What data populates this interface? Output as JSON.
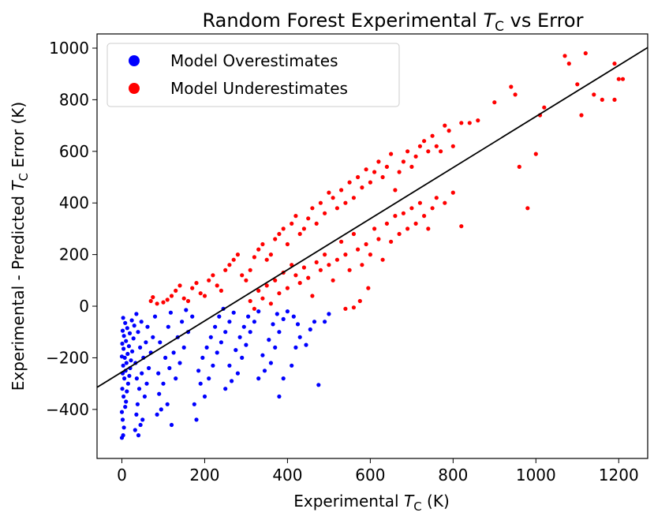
{
  "chart_data": {
    "type": "scatter",
    "title": {
      "prefix": "Random Forest Experimental ",
      "var": "T",
      "sub": "C",
      "suffix": " vs Error"
    },
    "xlabel": {
      "prefix": "Experimental ",
      "var": "T",
      "sub": "C",
      "suffix": " (K)"
    },
    "ylabel": {
      "prefix": "Experimental - Predicted ",
      "var": "T",
      "sub": "C",
      "suffix": " Error (K)"
    },
    "xlim": [
      -60,
      1270
    ],
    "ylim": [
      -590,
      1055
    ],
    "xticks": [
      0,
      200,
      400,
      600,
      800,
      1000,
      1200
    ],
    "yticks": [
      -400,
      -200,
      0,
      200,
      400,
      600,
      800,
      1000
    ],
    "xtick_labels": [
      "0",
      "200",
      "400",
      "600",
      "800",
      "1000",
      "1200"
    ],
    "ytick_labels": [
      "−400",
      "−200",
      "0",
      "200",
      "400",
      "600",
      "800",
      "1000"
    ],
    "legend_position": "upper-left",
    "trend_line": {
      "slope": 0.99,
      "intercept": -255,
      "color": "#000000"
    },
    "series": [
      {
        "name": "Model Overestimates",
        "color": "#0000ff",
        "points": [
          [
            0,
            -510
          ],
          [
            3,
            -500
          ],
          [
            5,
            -470
          ],
          [
            2,
            -440
          ],
          [
            0,
            -410
          ],
          [
            8,
            -390
          ],
          [
            10,
            -370
          ],
          [
            4,
            -350
          ],
          [
            12,
            -330
          ],
          [
            1,
            -320
          ],
          [
            15,
            -300
          ],
          [
            6,
            -280
          ],
          [
            18,
            -270
          ],
          [
            2,
            -260
          ],
          [
            9,
            -250
          ],
          [
            20,
            -240
          ],
          [
            3,
            -230
          ],
          [
            11,
            -220
          ],
          [
            22,
            -210
          ],
          [
            7,
            -200
          ],
          [
            0,
            -195
          ],
          [
            14,
            -185
          ],
          [
            25,
            -175
          ],
          [
            4,
            -165
          ],
          [
            17,
            -155
          ],
          [
            1,
            -145
          ],
          [
            10,
            -135
          ],
          [
            28,
            -125
          ],
          [
            5,
            -115
          ],
          [
            19,
            -105
          ],
          [
            2,
            -95
          ],
          [
            13,
            -85
          ],
          [
            30,
            -75
          ],
          [
            8,
            -65
          ],
          [
            24,
            -55
          ],
          [
            3,
            -45
          ],
          [
            32,
            -480
          ],
          [
            40,
            -500
          ],
          [
            45,
            -460
          ],
          [
            35,
            -420
          ],
          [
            50,
            -440
          ],
          [
            38,
            -380
          ],
          [
            55,
            -350
          ],
          [
            42,
            -320
          ],
          [
            60,
            -300
          ],
          [
            36,
            -280
          ],
          [
            48,
            -260
          ],
          [
            65,
            -240
          ],
          [
            33,
            -220
          ],
          [
            52,
            -200
          ],
          [
            70,
            -180
          ],
          [
            44,
            -160
          ],
          [
            58,
            -140
          ],
          [
            75,
            -120
          ],
          [
            39,
            -100
          ],
          [
            62,
            -80
          ],
          [
            47,
            -60
          ],
          [
            80,
            -40
          ],
          [
            35,
            -30
          ],
          [
            85,
            -420
          ],
          [
            95,
            -400
          ],
          [
            110,
            -380
          ],
          [
            90,
            -340
          ],
          [
            120,
            -460
          ],
          [
            100,
            -300
          ],
          [
            130,
            -280
          ],
          [
            88,
            -260
          ],
          [
            115,
            -240
          ],
          [
            140,
            -220
          ],
          [
            105,
            -200
          ],
          [
            125,
            -180
          ],
          [
            150,
            -160
          ],
          [
            92,
            -140
          ],
          [
            135,
            -120
          ],
          [
            160,
            -100
          ],
          [
            112,
            -80
          ],
          [
            145,
            -60
          ],
          [
            170,
            -40
          ],
          [
            118,
            -25
          ],
          [
            155,
            -15
          ],
          [
            180,
            -440
          ],
          [
            175,
            -380
          ],
          [
            200,
            -350
          ],
          [
            190,
            -300
          ],
          [
            210,
            -280
          ],
          [
            185,
            -250
          ],
          [
            220,
            -230
          ],
          [
            195,
            -200
          ],
          [
            230,
            -180
          ],
          [
            205,
            -160
          ],
          [
            240,
            -140
          ],
          [
            215,
            -120
          ],
          [
            250,
            -100
          ],
          [
            225,
            -80
          ],
          [
            260,
            -60
          ],
          [
            235,
            -40
          ],
          [
            270,
            -25
          ],
          [
            245,
            -10
          ],
          [
            250,
            -320
          ],
          [
            265,
            -290
          ],
          [
            280,
            -260
          ],
          [
            260,
            -230
          ],
          [
            290,
            -200
          ],
          [
            275,
            -170
          ],
          [
            300,
            -150
          ],
          [
            285,
            -120
          ],
          [
            310,
            -100
          ],
          [
            295,
            -80
          ],
          [
            320,
            -60
          ],
          [
            305,
            -40
          ],
          [
            330,
            -20
          ],
          [
            330,
            -280
          ],
          [
            345,
            -250
          ],
          [
            360,
            -220
          ],
          [
            340,
            -190
          ],
          [
            370,
            -160
          ],
          [
            355,
            -130
          ],
          [
            380,
            -100
          ],
          [
            365,
            -70
          ],
          [
            390,
            -50
          ],
          [
            375,
            -30
          ],
          [
            400,
            -20
          ],
          [
            380,
            -350
          ],
          [
            390,
            -280
          ],
          [
            410,
            -230
          ],
          [
            420,
            -160
          ],
          [
            430,
            -120
          ],
          [
            445,
            -150
          ],
          [
            455,
            -90
          ],
          [
            465,
            -60
          ],
          [
            475,
            -305
          ],
          [
            490,
            -60
          ],
          [
            500,
            -30
          ],
          [
            415,
            -40
          ],
          [
            425,
            -70
          ]
        ]
      },
      {
        "name": "Model Underestimates",
        "color": "#ff0000",
        "points": [
          [
            70,
            20
          ],
          [
            75,
            35
          ],
          [
            85,
            10
          ],
          [
            100,
            15
          ],
          [
            110,
            25
          ],
          [
            120,
            40
          ],
          [
            130,
            60
          ],
          [
            140,
            80
          ],
          [
            150,
            30
          ],
          [
            160,
            20
          ],
          [
            170,
            70
          ],
          [
            180,
            90
          ],
          [
            190,
            50
          ],
          [
            200,
            40
          ],
          [
            210,
            100
          ],
          [
            220,
            120
          ],
          [
            230,
            80
          ],
          [
            240,
            60
          ],
          [
            250,
            140
          ],
          [
            260,
            160
          ],
          [
            270,
            180
          ],
          [
            280,
            200
          ],
          [
            290,
            120
          ],
          [
            300,
            100
          ],
          [
            310,
            140
          ],
          [
            320,
            190
          ],
          [
            330,
            220
          ],
          [
            340,
            240
          ],
          [
            350,
            180
          ],
          [
            360,
            200
          ],
          [
            370,
            260
          ],
          [
            380,
            280
          ],
          [
            390,
            300
          ],
          [
            400,
            240
          ],
          [
            410,
            320
          ],
          [
            420,
            350
          ],
          [
            430,
            280
          ],
          [
            440,
            300
          ],
          [
            450,
            340
          ],
          [
            460,
            380
          ],
          [
            470,
            320
          ],
          [
            480,
            400
          ],
          [
            490,
            360
          ],
          [
            500,
            440
          ],
          [
            510,
            420
          ],
          [
            520,
            380
          ],
          [
            530,
            450
          ],
          [
            540,
            400
          ],
          [
            550,
            480
          ],
          [
            560,
            420
          ],
          [
            570,
            500
          ],
          [
            580,
            460
          ],
          [
            590,
            530
          ],
          [
            600,
            480
          ],
          [
            610,
            520
          ],
          [
            620,
            560
          ],
          [
            630,
            500
          ],
          [
            640,
            540
          ],
          [
            650,
            590
          ],
          [
            660,
            450
          ],
          [
            670,
            520
          ],
          [
            680,
            560
          ],
          [
            690,
            600
          ],
          [
            700,
            540
          ],
          [
            710,
            580
          ],
          [
            720,
            620
          ],
          [
            730,
            640
          ],
          [
            740,
            600
          ],
          [
            750,
            660
          ],
          [
            760,
            620
          ],
          [
            770,
            600
          ],
          [
            780,
            700
          ],
          [
            790,
            680
          ],
          [
            800,
            620
          ],
          [
            820,
            710
          ],
          [
            840,
            710
          ],
          [
            860,
            720
          ],
          [
            900,
            790
          ],
          [
            940,
            850
          ],
          [
            950,
            820
          ],
          [
            960,
            540
          ],
          [
            980,
            380
          ],
          [
            1000,
            590
          ],
          [
            1010,
            740
          ],
          [
            1020,
            770
          ],
          [
            1070,
            970
          ],
          [
            1080,
            940
          ],
          [
            1100,
            860
          ],
          [
            1110,
            740
          ],
          [
            1120,
            980
          ],
          [
            1140,
            820
          ],
          [
            1160,
            800
          ],
          [
            1190,
            940
          ],
          [
            1200,
            880
          ],
          [
            1210,
            880
          ],
          [
            1190,
            800
          ],
          [
            310,
            20
          ],
          [
            320,
            -10
          ],
          [
            330,
            60
          ],
          [
            340,
            30
          ],
          [
            350,
            80
          ],
          [
            360,
            10
          ],
          [
            370,
            100
          ],
          [
            380,
            50
          ],
          [
            390,
            130
          ],
          [
            400,
            70
          ],
          [
            410,
            160
          ],
          [
            420,
            120
          ],
          [
            430,
            90
          ],
          [
            440,
            150
          ],
          [
            450,
            110
          ],
          [
            460,
            40
          ],
          [
            470,
            170
          ],
          [
            480,
            140
          ],
          [
            490,
            200
          ],
          [
            500,
            160
          ],
          [
            510,
            100
          ],
          [
            520,
            180
          ],
          [
            530,
            250
          ],
          [
            540,
            200
          ],
          [
            550,
            140
          ],
          [
            560,
            280
          ],
          [
            570,
            220
          ],
          [
            580,
            160
          ],
          [
            590,
            240
          ],
          [
            600,
            200
          ],
          [
            610,
            300
          ],
          [
            620,
            260
          ],
          [
            630,
            180
          ],
          [
            640,
            320
          ],
          [
            650,
            250
          ],
          [
            660,
            350
          ],
          [
            670,
            280
          ],
          [
            680,
            360
          ],
          [
            690,
            300
          ],
          [
            700,
            380
          ],
          [
            710,
            320
          ],
          [
            720,
            400
          ],
          [
            730,
            350
          ],
          [
            740,
            300
          ],
          [
            750,
            380
          ],
          [
            760,
            420
          ],
          [
            780,
            400
          ],
          [
            800,
            440
          ],
          [
            820,
            310
          ],
          [
            540,
            -10
          ],
          [
            560,
            -5
          ],
          [
            575,
            20
          ],
          [
            595,
            70
          ]
        ]
      }
    ]
  }
}
